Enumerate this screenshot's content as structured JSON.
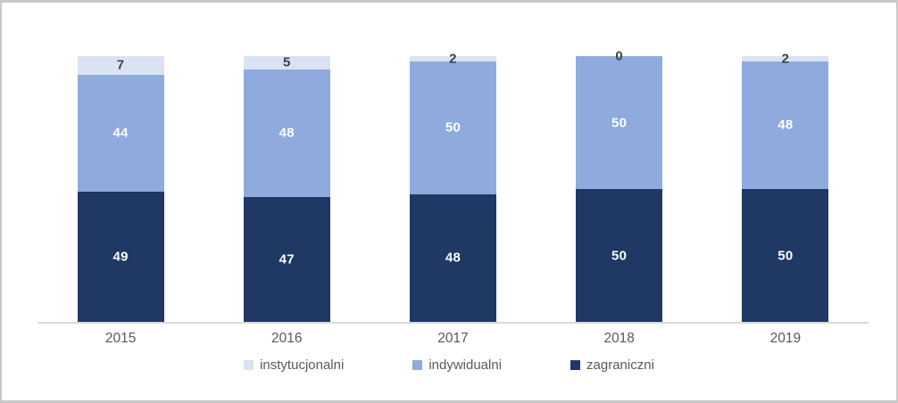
{
  "chart_data": {
    "type": "bar",
    "variant": "stacked-100-column",
    "title": "",
    "xlabel": "",
    "ylabel": "",
    "categories": [
      "2015",
      "2016",
      "2017",
      "2018",
      "2019"
    ],
    "series": [
      {
        "name": "zagraniczni",
        "color": "#1f3864",
        "label_color": "#ffffff",
        "values": [
          49,
          47,
          48,
          50,
          50
        ]
      },
      {
        "name": "indywidualni",
        "color": "#8faadc",
        "label_color": "#ffffff",
        "values": [
          44,
          48,
          50,
          50,
          48
        ]
      },
      {
        "name": "instytucjonalni",
        "color": "#dae3f3",
        "label_color": "#404040",
        "values": [
          7,
          5,
          2,
          0,
          2
        ]
      }
    ],
    "legend": {
      "position": "bottom",
      "entries": [
        {
          "label": "instytucjonalni",
          "color": "#dae3f3"
        },
        {
          "label": "indywidualni",
          "color": "#8faadc"
        },
        {
          "label": "zagraniczni",
          "color": "#1f3864"
        }
      ]
    },
    "ylim": [
      0,
      100
    ],
    "grid": false,
    "data_labels": true,
    "axis_line_color": "#d9d9d9",
    "tick_label_color": "#595959"
  }
}
